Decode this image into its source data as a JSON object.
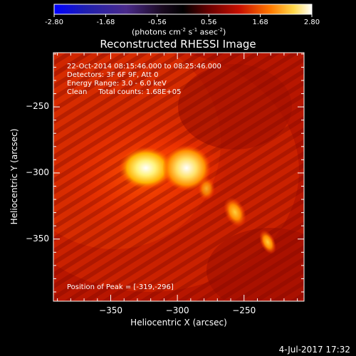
{
  "title": "Reconstructed RHESSI Image",
  "colorbar": {
    "ticks": [
      "-2.80",
      "-1.68",
      "-0.56",
      "0.56",
      "1.68",
      "2.80"
    ],
    "units_prefix": "(photons cm",
    "units_sup1": "-2",
    "units_mid1": " s",
    "units_sup2": "-1",
    "units_mid2": " asec",
    "units_sup3": "-2",
    "units_suffix": ")",
    "colors": {
      "low": "#0000ff",
      "mid": "#000000",
      "high": "#ffffff"
    }
  },
  "plot": {
    "xlabel": "Heliocentric X (arcsec)",
    "ylabel": "Heliocentric Y (arcsec)",
    "xticks": [
      "-350",
      "-300",
      "-250"
    ],
    "yticks": [
      "-250",
      "-300",
      "-350"
    ]
  },
  "overlay": {
    "time_range": "22-Oct-2014 08:15:46.000 to 08:25:46.000",
    "detectors": "Detectors: 3F 6F 9F, Att 0",
    "energy": "Energy Range: 3.0 - 6.0 keV",
    "clean": "Clean     Total counts: 1.68E+05",
    "peak": "Position of Peak = [-319,-296]"
  },
  "footer": {
    "date": "4-Jul-2017 17:32"
  },
  "chart_data": {
    "type": "heatmap",
    "title": "Reconstructed RHESSI Image",
    "xlabel": "Heliocentric X (arcsec)",
    "ylabel": "Heliocentric Y (arcsec)",
    "xlim": [
      -393,
      -205
    ],
    "ylim": [
      -397,
      -209
    ],
    "color_range": [
      -2.8,
      2.8
    ],
    "x_ticks": [
      -350,
      -300,
      -250
    ],
    "y_ticks": [
      -250,
      -300,
      -350
    ],
    "sources": [
      {
        "x": -319,
        "y": -296,
        "label": "peak"
      },
      {
        "x": -291,
        "y": -296
      },
      {
        "x": -256,
        "y": -330
      },
      {
        "x": -231,
        "y": -345
      }
    ]
  }
}
